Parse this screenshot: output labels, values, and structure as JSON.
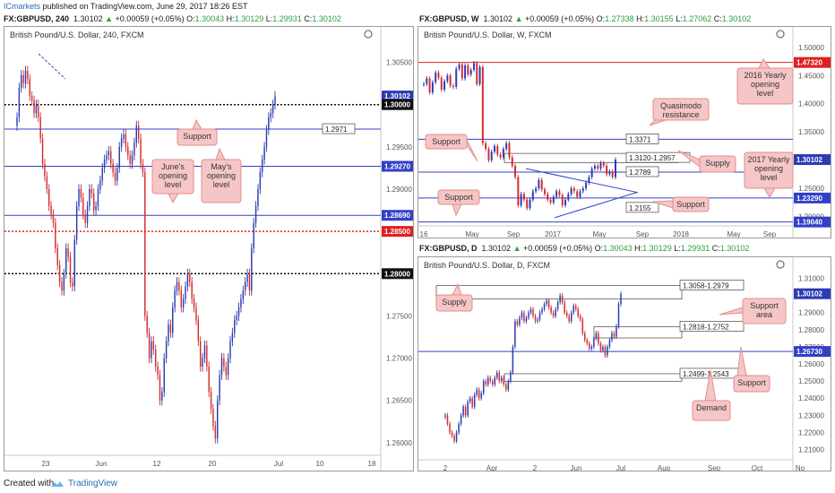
{
  "header": {
    "author": "ICmarkets",
    "published_text": "published on TradingView.com, June 29, 2017 18:26 EST"
  },
  "footer": {
    "created_with": "Created with",
    "brand": "TradingView"
  },
  "colors": {
    "up": "#2b3bb4",
    "down": "#d42b2b",
    "level_blue": "#3240c8",
    "level_red": "#e02020",
    "callout_fill": "#f6c6c6",
    "callout_border": "#e28f8f",
    "zone_fill": "#ffffff"
  },
  "panes": [
    {
      "id": "h4",
      "header": {
        "symbol": "FX:GBPUSD, 240",
        "last": "1.30102",
        "arrow": "▲",
        "change": "+0.00059 (+0.05%)",
        "o": "1.30043",
        "h": "1.30129",
        "l": "1.29931",
        "c": "1.30102"
      },
      "title": "British Pound/U.S. Dollar, 240, FXCM",
      "icon": "gear-icon",
      "x_ticks": [
        "23",
        "Jun",
        "12",
        "20",
        "Jul",
        "10",
        "18"
      ],
      "y_ticks": [
        "1.30500",
        "1.30000",
        "1.29500",
        "1.29000",
        "1.28500",
        "1.28000",
        "1.27500",
        "1.27000",
        "1.26500",
        "1.26000"
      ],
      "price_tags": [
        {
          "label": "1.30102",
          "color": "#2b3bb4"
        },
        {
          "label": "1.30000",
          "color": "#111111"
        },
        {
          "label": "1.29270",
          "color": "#3240c8"
        },
        {
          "label": "1.28690",
          "color": "#3240c8"
        },
        {
          "label": "1.28500",
          "color": "#e02020"
        },
        {
          "label": "1.28000",
          "color": "#111111"
        }
      ],
      "box_label": "1.2971",
      "annotations": [
        "Support",
        "June's opening level",
        "May's opening level"
      ]
    },
    {
      "id": "weekly",
      "header": {
        "symbol": "FX:GBPUSD, W",
        "last": "1.30102",
        "arrow": "▲",
        "change": "+0.00059 (+0.05%)",
        "o": "1.27338",
        "h": "1.30155",
        "l": "1.27062",
        "c": "1.30102"
      },
      "title": "British Pound/U.S. Dollar, W, FXCM",
      "icon": "gear-icon",
      "x_ticks": [
        "16",
        "May",
        "Sep",
        "2017",
        "May",
        "Sep",
        "2018",
        "May",
        "Sep"
      ],
      "y_ticks": [
        "1.50000",
        "1.45000",
        "1.40000",
        "1.35000",
        "1.30000",
        "1.25000",
        "1.20000"
      ],
      "price_tags": [
        {
          "label": "1.47320",
          "color": "#e02020"
        },
        {
          "label": "1.30102",
          "color": "#2b3bb4"
        },
        {
          "label": "1.23290",
          "color": "#3240c8"
        },
        {
          "label": "1.19040",
          "color": "#3240c8"
        }
      ],
      "box_labels": [
        "1.3371",
        "1.3120-1.2957",
        "1.2789",
        "1.2155"
      ],
      "annotations": [
        "2016 Yearly opening level",
        "Quasimodo resistance",
        "Support",
        "Supply",
        "2017 Yearly opening level",
        "Support",
        "Support"
      ]
    },
    {
      "id": "daily",
      "header": {
        "symbol": "FX:GBPUSD, D",
        "last": "1.30102",
        "arrow": "▲",
        "change": "+0.00059 (+0.05%)",
        "o": "1.30043",
        "h": "1.30129",
        "l": "1.29931",
        "c": "1.30102"
      },
      "title": "British Pound/U.S. Dollar, D, FXCM",
      "icon": "gear-icon",
      "x_ticks": [
        "2",
        "Apr",
        "2",
        "Jun",
        "Jul",
        "Aug",
        "Sep",
        "Oct",
        "No"
      ],
      "y_ticks": [
        "1.31000",
        "1.30000",
        "1.29000",
        "1.28000",
        "1.27000",
        "1.26000",
        "1.25000",
        "1.24000",
        "1.23000",
        "1.22000",
        "1.21000"
      ],
      "price_tags": [
        {
          "label": "1.30102",
          "color": "#2b3bb4"
        },
        {
          "label": "1.26730",
          "color": "#3240c8"
        }
      ],
      "box_labels": [
        "1.3058-1.2979",
        "1.2818-1.2752",
        "1.2499-1.2543"
      ],
      "annotations": [
        "Supply",
        "Support area",
        "Support",
        "Demand"
      ]
    }
  ],
  "chart_data": [
    {
      "type": "candlestick",
      "title": "British Pound/U.S. Dollar, 240, FXCM",
      "ylim": [
        1.2585,
        1.3075
      ],
      "x_ticks": [
        "23",
        "Jun",
        "12",
        "20",
        "Jul",
        "10",
        "18"
      ],
      "levels": [
        {
          "value": 1.3,
          "style": "dotted",
          "color": "#111111"
        },
        {
          "value": 1.2971,
          "style": "solid",
          "color": "#3240c8"
        },
        {
          "value": 1.2927,
          "style": "solid",
          "color": "#3240c8"
        },
        {
          "value": 1.2869,
          "style": "solid",
          "color": "#3240c8"
        },
        {
          "value": 1.285,
          "style": "dotted",
          "color": "#e02020"
        },
        {
          "value": 1.28,
          "style": "dotted",
          "color": "#111111"
        }
      ],
      "closes": [
        1.2985,
        1.302,
        1.3035,
        1.3025,
        1.304,
        1.303,
        1.301,
        1.3005,
        1.299,
        1.3,
        1.2985,
        1.296,
        1.293,
        1.2915,
        1.29,
        1.288,
        1.287,
        1.286,
        1.283,
        1.281,
        1.279,
        1.278,
        1.28,
        1.283,
        1.282,
        1.279,
        1.2785,
        1.284,
        1.288,
        1.29,
        1.289,
        1.287,
        1.286,
        1.288,
        1.29,
        1.2895,
        1.2875,
        1.288,
        1.29,
        1.291,
        1.2925,
        1.2935,
        1.294,
        1.2945,
        1.293,
        1.292,
        1.291,
        1.2925,
        1.295,
        1.296,
        1.2965,
        1.295,
        1.294,
        1.293,
        1.294,
        1.2955,
        1.2975,
        1.296,
        1.293,
        1.292,
        1.275,
        1.273,
        1.27,
        1.272,
        1.271,
        1.269,
        1.268,
        1.265,
        1.266,
        1.27,
        1.272,
        1.274,
        1.273,
        1.276,
        1.278,
        1.279,
        1.278,
        1.276,
        1.277,
        1.2785,
        1.28,
        1.279,
        1.277,
        1.276,
        1.2745,
        1.272,
        1.269,
        1.27,
        1.2715,
        1.269,
        1.266,
        1.264,
        1.262,
        1.2605,
        1.265,
        1.268,
        1.27,
        1.269,
        1.268,
        1.27,
        1.272,
        1.273,
        1.2745,
        1.275,
        1.276,
        1.277,
        1.278,
        1.279,
        1.28,
        1.278,
        1.283,
        1.286,
        1.288,
        1.29,
        1.292,
        1.2935,
        1.295,
        1.297,
        1.2985,
        1.299,
        1.3,
        1.301
      ],
      "last_close": 1.30102
    },
    {
      "type": "candlestick",
      "title": "British Pound/U.S. Dollar, W, FXCM",
      "ylim": [
        1.1835,
        1.514
      ],
      "x_ticks": [
        "16",
        "May",
        "Sep",
        "2017",
        "May",
        "Sep",
        "2018",
        "May",
        "Sep"
      ],
      "levels": [
        {
          "value": 1.4732,
          "style": "solid",
          "color": "#e02020"
        },
        {
          "value": 1.3371,
          "style": "solid",
          "color": "#3240c8"
        },
        {
          "value": 1.2789,
          "style": "solid",
          "color": "#3240c8"
        },
        {
          "value": 1.2329,
          "style": "solid",
          "color": "#3240c8"
        },
        {
          "value": 1.1904,
          "style": "solid",
          "color": "#3240c8"
        }
      ],
      "zones": [
        {
          "from": 1.312,
          "to": 1.2957
        }
      ],
      "closes": [
        1.435,
        1.445,
        1.42,
        1.438,
        1.455,
        1.446,
        1.425,
        1.44,
        1.45,
        1.432,
        1.43,
        1.462,
        1.47,
        1.445,
        1.468,
        1.452,
        1.46,
        1.472,
        1.435,
        1.465,
        1.33,
        1.32,
        1.3,
        1.315,
        1.325,
        1.31,
        1.305,
        1.32,
        1.33,
        1.305,
        1.29,
        1.27,
        1.22,
        1.24,
        1.23,
        1.215,
        1.23,
        1.245,
        1.25,
        1.265,
        1.248,
        1.24,
        1.23,
        1.225,
        1.235,
        1.245,
        1.238,
        1.22,
        1.23,
        1.24,
        1.25,
        1.245,
        1.235,
        1.245,
        1.25,
        1.26,
        1.27,
        1.285,
        1.29,
        1.285,
        1.295,
        1.29,
        1.275,
        1.28,
        1.27,
        1.301
      ],
      "last_close": 1.30102
    },
    {
      "type": "candlestick",
      "title": "British Pound/U.S. Dollar, D, FXCM",
      "ylim": [
        1.204,
        1.315
      ],
      "x_ticks": [
        "2",
        "Apr",
        "2",
        "Jun",
        "Jul",
        "Aug",
        "Sep",
        "Oct",
        "No"
      ],
      "levels": [
        {
          "value": 1.2673,
          "style": "solid",
          "color": "#3240c8"
        }
      ],
      "zones": [
        {
          "from": 1.3058,
          "to": 1.2979
        },
        {
          "from": 1.2818,
          "to": 1.2752
        },
        {
          "from": 1.2543,
          "to": 1.2499
        }
      ],
      "closes": [
        1.23,
        1.225,
        1.22,
        1.218,
        1.215,
        1.22,
        1.225,
        1.23,
        1.235,
        1.23,
        1.238,
        1.24,
        1.235,
        1.242,
        1.245,
        1.24,
        1.243,
        1.25,
        1.248,
        1.252,
        1.25,
        1.248,
        1.252,
        1.255,
        1.25,
        1.252,
        1.248,
        1.245,
        1.25,
        1.255,
        1.27,
        1.285,
        1.283,
        1.287,
        1.29,
        1.285,
        1.287,
        1.29,
        1.292,
        1.288,
        1.285,
        1.286,
        1.29,
        1.292,
        1.295,
        1.297,
        1.293,
        1.29,
        1.288,
        1.292,
        1.296,
        1.3,
        1.296,
        1.29,
        1.288,
        1.285,
        1.29,
        1.294,
        1.292,
        1.288,
        1.286,
        1.278,
        1.274,
        1.272,
        1.269,
        1.27,
        1.275,
        1.278,
        1.272,
        1.268,
        1.27,
        1.265,
        1.27,
        1.274,
        1.278,
        1.276,
        1.282,
        1.295,
        1.301
      ],
      "last_close": 1.30102
    }
  ]
}
